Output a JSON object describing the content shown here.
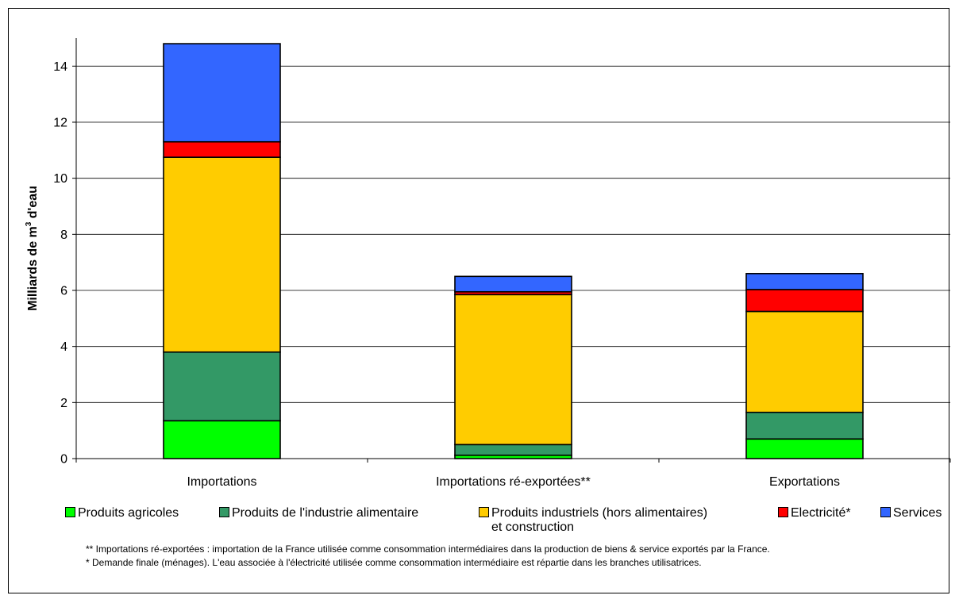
{
  "chart_data": {
    "type": "bar",
    "stacked": true,
    "title": "",
    "xlabel": "",
    "ylabel": "Milliards de m³ d'eau",
    "ylabel_parts": {
      "pre": "Milliards de m",
      "sup": "3",
      "post": " d'eau"
    },
    "ylim": [
      0,
      15
    ],
    "yticks": [
      "0",
      "2",
      "4",
      "6",
      "8",
      "10",
      "12",
      "14"
    ],
    "grid": "horizontal",
    "legend_position": "bottom",
    "categories": [
      "Importations",
      "Importations ré-exportées**",
      "Exportations"
    ],
    "series": [
      {
        "name": "Produits agricoles",
        "color": "#00ff00",
        "values": [
          1.35,
          0.12,
          0.7
        ]
      },
      {
        "name": "Produits de l'industrie alimentaire",
        "color": "#339966",
        "values": [
          2.45,
          0.38,
          0.95
        ]
      },
      {
        "name": "Produits industriels (hors alimentaires)\net construction",
        "color": "#ffcc00",
        "values": [
          6.95,
          5.35,
          3.6
        ]
      },
      {
        "name": "Electricité*",
        "color": "#ff0000",
        "values": [
          0.55,
          0.1,
          0.78
        ]
      },
      {
        "name": "Services",
        "color": "#3366ff",
        "values": [
          3.5,
          0.55,
          0.57
        ]
      }
    ]
  },
  "notes": [
    "** Importations ré-exportées : importation de la France utilisée comme consommation intermédiaires dans la production de biens & service exportés par la France.",
    "* Demande finale (ménages). L'eau associée à l'électricité utilisée comme consommation intermédiaire est répartie dans les branches utilisatrices."
  ]
}
